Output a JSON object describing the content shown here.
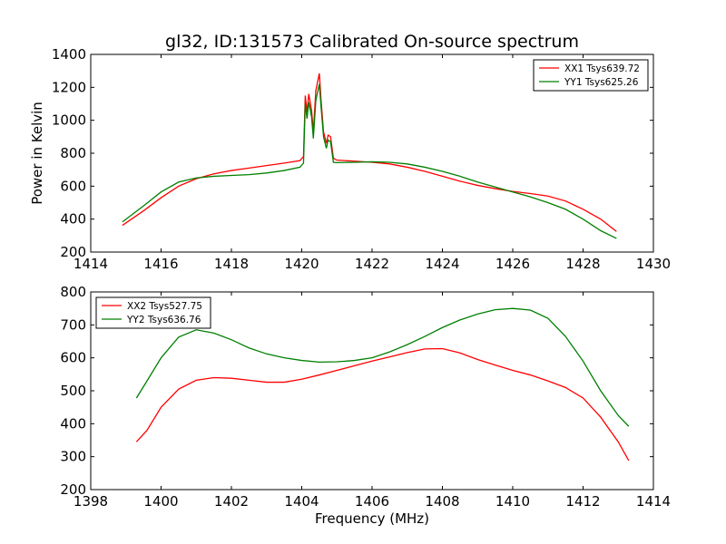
{
  "figure": {
    "title": "gl32, ID:131573 Calibrated On-source spectrum",
    "ylabel": "Power in Kelvin",
    "xlabel": "Frequency (MHz)"
  },
  "chart_data": [
    {
      "type": "line",
      "xlim": [
        1414,
        1430
      ],
      "ylim": [
        200,
        1400
      ],
      "x_ticks": [
        1414,
        1416,
        1418,
        1420,
        1422,
        1424,
        1426,
        1428,
        1430
      ],
      "y_ticks": [
        200,
        400,
        600,
        800,
        1000,
        1200,
        1400
      ],
      "legend_position": "top-right",
      "grid": false,
      "series": [
        {
          "name": "XX1 Tsys639.72",
          "color": "#ff0000",
          "points": [
            [
              1414.9,
              362
            ],
            [
              1415.5,
              450
            ],
            [
              1416.0,
              530
            ],
            [
              1416.5,
              600
            ],
            [
              1417.0,
              645
            ],
            [
              1417.5,
              675
            ],
            [
              1418.0,
              695
            ],
            [
              1418.5,
              710
            ],
            [
              1419.0,
              725
            ],
            [
              1419.5,
              740
            ],
            [
              1419.95,
              755
            ],
            [
              1420.05,
              780
            ],
            [
              1420.1,
              1150
            ],
            [
              1420.15,
              1050
            ],
            [
              1420.2,
              1160
            ],
            [
              1420.28,
              1060
            ],
            [
              1420.33,
              930
            ],
            [
              1420.4,
              1180
            ],
            [
              1420.5,
              1285
            ],
            [
              1420.55,
              1120
            ],
            [
              1420.62,
              930
            ],
            [
              1420.7,
              860
            ],
            [
              1420.75,
              910
            ],
            [
              1420.82,
              900
            ],
            [
              1420.9,
              770
            ],
            [
              1421.0,
              758
            ],
            [
              1421.5,
              752
            ],
            [
              1422.0,
              745
            ],
            [
              1422.5,
              735
            ],
            [
              1423.0,
              715
            ],
            [
              1423.5,
              690
            ],
            [
              1424.0,
              660
            ],
            [
              1424.5,
              630
            ],
            [
              1425.0,
              605
            ],
            [
              1425.5,
              585
            ],
            [
              1426.0,
              568
            ],
            [
              1426.5,
              555
            ],
            [
              1427.0,
              540
            ],
            [
              1427.5,
              510
            ],
            [
              1428.0,
              460
            ],
            [
              1428.5,
              400
            ],
            [
              1428.95,
              325
            ]
          ]
        },
        {
          "name": "YY1 Tsys625.26",
          "color": "#008000",
          "points": [
            [
              1414.9,
              383
            ],
            [
              1415.5,
              480
            ],
            [
              1416.0,
              565
            ],
            [
              1416.5,
              625
            ],
            [
              1417.0,
              650
            ],
            [
              1417.5,
              660
            ],
            [
              1418.0,
              665
            ],
            [
              1418.5,
              670
            ],
            [
              1419.0,
              680
            ],
            [
              1419.5,
              695
            ],
            [
              1419.95,
              715
            ],
            [
              1420.05,
              740
            ],
            [
              1420.1,
              1100
            ],
            [
              1420.15,
              1010
            ],
            [
              1420.2,
              1110
            ],
            [
              1420.28,
              1020
            ],
            [
              1420.33,
              890
            ],
            [
              1420.4,
              1120
            ],
            [
              1420.5,
              1220
            ],
            [
              1420.55,
              1080
            ],
            [
              1420.62,
              900
            ],
            [
              1420.7,
              830
            ],
            [
              1420.75,
              880
            ],
            [
              1420.82,
              870
            ],
            [
              1420.9,
              745
            ],
            [
              1421.0,
              743
            ],
            [
              1421.5,
              745
            ],
            [
              1422.0,
              748
            ],
            [
              1422.5,
              745
            ],
            [
              1423.0,
              735
            ],
            [
              1423.5,
              715
            ],
            [
              1424.0,
              690
            ],
            [
              1424.5,
              660
            ],
            [
              1425.0,
              625
            ],
            [
              1425.5,
              595
            ],
            [
              1426.0,
              565
            ],
            [
              1426.5,
              535
            ],
            [
              1427.0,
              500
            ],
            [
              1427.5,
              460
            ],
            [
              1428.0,
              400
            ],
            [
              1428.5,
              330
            ],
            [
              1428.95,
              283
            ]
          ]
        }
      ]
    },
    {
      "type": "line",
      "xlim": [
        1398,
        1414
      ],
      "ylim": [
        200,
        800
      ],
      "x_ticks": [
        1398,
        1400,
        1402,
        1404,
        1406,
        1408,
        1410,
        1412,
        1414
      ],
      "y_ticks": [
        200,
        300,
        400,
        500,
        600,
        700,
        800
      ],
      "legend_position": "top-left",
      "grid": false,
      "series": [
        {
          "name": "XX2 Tsys527.75",
          "color": "#ff0000",
          "points": [
            [
              1399.3,
              345
            ],
            [
              1399.6,
              380
            ],
            [
              1400.0,
              450
            ],
            [
              1400.5,
              505
            ],
            [
              1401.0,
              532
            ],
            [
              1401.5,
              540
            ],
            [
              1402.0,
              538
            ],
            [
              1402.5,
              532
            ],
            [
              1403.0,
              526
            ],
            [
              1403.5,
              526
            ],
            [
              1404.0,
              535
            ],
            [
              1404.5,
              548
            ],
            [
              1405.0,
              562
            ],
            [
              1405.5,
              576
            ],
            [
              1406.0,
              590
            ],
            [
              1406.5,
              603
            ],
            [
              1407.0,
              616
            ],
            [
              1407.5,
              627
            ],
            [
              1408.0,
              628
            ],
            [
              1408.5,
              615
            ],
            [
              1409.0,
              595
            ],
            [
              1409.5,
              578
            ],
            [
              1410.0,
              562
            ],
            [
              1410.5,
              548
            ],
            [
              1411.0,
              530
            ],
            [
              1411.5,
              510
            ],
            [
              1412.0,
              478
            ],
            [
              1412.5,
              420
            ],
            [
              1413.0,
              345
            ],
            [
              1413.3,
              288
            ]
          ]
        },
        {
          "name": "YY2 Tsys636.76",
          "color": "#008000",
          "points": [
            [
              1399.3,
              478
            ],
            [
              1399.6,
              530
            ],
            [
              1400.0,
              600
            ],
            [
              1400.5,
              663
            ],
            [
              1401.0,
              685
            ],
            [
              1401.5,
              675
            ],
            [
              1402.0,
              655
            ],
            [
              1402.5,
              630
            ],
            [
              1403.0,
              612
            ],
            [
              1403.5,
              600
            ],
            [
              1404.0,
              592
            ],
            [
              1404.5,
              587
            ],
            [
              1405.0,
              588
            ],
            [
              1405.5,
              592
            ],
            [
              1406.0,
              600
            ],
            [
              1406.5,
              618
            ],
            [
              1407.0,
              640
            ],
            [
              1407.5,
              665
            ],
            [
              1408.0,
              692
            ],
            [
              1408.5,
              715
            ],
            [
              1409.0,
              733
            ],
            [
              1409.5,
              746
            ],
            [
              1410.0,
              750
            ],
            [
              1410.5,
              745
            ],
            [
              1411.0,
              720
            ],
            [
              1411.5,
              665
            ],
            [
              1412.0,
              590
            ],
            [
              1412.5,
              500
            ],
            [
              1413.0,
              425
            ],
            [
              1413.3,
              392
            ]
          ]
        }
      ]
    }
  ]
}
